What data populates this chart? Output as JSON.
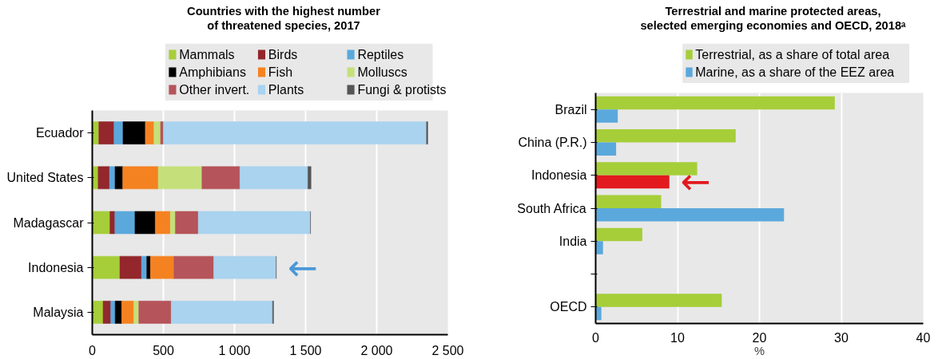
{
  "chart_data": [
    {
      "type": "bar",
      "orientation": "horizontal",
      "stacked": true,
      "title": "Countries with the highest number of threatened species, 2017",
      "categories": [
        "Ecuador",
        "United States",
        "Madagascar",
        "Indonesia",
        "Malaysia"
      ],
      "series": [
        {
          "name": "Mammals",
          "color": "#a6ce39",
          "values": [
            46,
            41,
            124,
            194,
            76
          ]
        },
        {
          "name": "Birds",
          "color": "#93272c",
          "values": [
            107,
            80,
            35,
            152,
            54
          ]
        },
        {
          "name": "Reptiles",
          "color": "#5ba8dc",
          "values": [
            63,
            39,
            141,
            37,
            31
          ]
        },
        {
          "name": "Amphibians",
          "color": "#000000",
          "values": [
            157,
            54,
            143,
            26,
            46
          ]
        },
        {
          "name": "Fish",
          "color": "#f58220",
          "values": [
            61,
            250,
            106,
            165,
            85
          ]
        },
        {
          "name": "Molluscs",
          "color": "#c5e07a",
          "values": [
            46,
            307,
            35,
            null,
            35
          ]
        },
        {
          "name": "Other invert.",
          "color": "#b5545a",
          "values": [
            20,
            267,
            161,
            280,
            228
          ]
        },
        {
          "name": "Plants",
          "color": "#a9d3ef",
          "values": [
            1850,
            478,
            789,
            439,
            713
          ]
        },
        {
          "name": "Fungi & protists",
          "color": "#555555",
          "values": [
            9,
            22,
            0,
            0,
            7
          ]
        }
      ],
      "xlim": [
        0,
        2500
      ],
      "xticks": [
        0,
        500,
        {
          "value": 1000,
          "label": "1 000"
        },
        {
          "value": 1500,
          "label": "1 500"
        },
        {
          "value": 2000,
          "label": "2 000"
        },
        {
          "value": 2500,
          "label": "2 500"
        }
      ],
      "annotations": [
        {
          "text": "←",
          "x": 1295,
          "y": "Indonesia"
        }
      ],
      "grid": "x",
      "legend": "top"
    },
    {
      "type": "bar",
      "orientation": "horizontal",
      "title": "Terrestrial and marine protected areas, selected emerging economies and OECD, 2018ᵃ",
      "categories": [
        "Brazil",
        "China (P.R.)",
        "Indonesia",
        "South Africa",
        "India",
        null,
        "OECD"
      ],
      "series": [
        {
          "name": "Terrestrial, as a share of total area",
          "color": "#a6ce39",
          "values": [
            29.2,
            17.1,
            12.4,
            8.0,
            5.7,
            null,
            15.4
          ]
        },
        {
          "name": "Marine, as a share of the EEZ area",
          "color": "#5ba8dc",
          "colors": [
            "#5ba8dc",
            "#5ba8dc",
            "#e2191f",
            "#5ba8dc",
            "#5ba8dc",
            "#5ba8dc",
            "#5ba8dc"
          ],
          "values": [
            2.7,
            2.5,
            9.0,
            23.0,
            0.9,
            null,
            0.7
          ]
        }
      ],
      "xlabel": "%",
      "xlim": [
        0,
        40
      ],
      "xticks": [
        0,
        10,
        20,
        30,
        40
      ],
      "annotations": [
        {
          "text": "←",
          "x": 9.0,
          "y": "Indonesia"
        }
      ],
      "grid": "x",
      "legend": "top"
    }
  ]
}
